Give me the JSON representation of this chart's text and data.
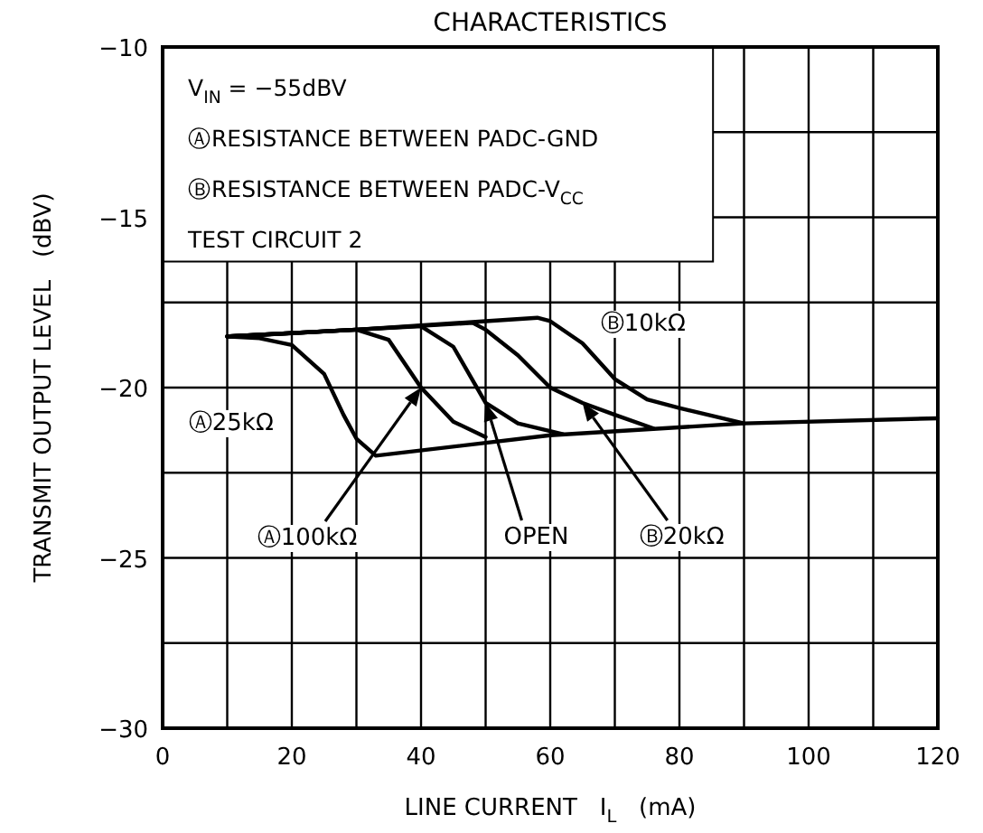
{
  "chart_data": {
    "type": "line",
    "title": "CHARACTERISTICS",
    "xlabel": "LINE CURRENT   I$_{L}$   (mA)",
    "ylabel": "TRANSMIT OUTPUT LEVEL   (dBV)",
    "annotations": [
      "V$_{IN}$ = −55dBV",
      "ⒶRESISTANCE BETWEEN PADC-GND",
      "ⒷRESISTANCE BETWEEN PADC-V$_{CC}$",
      "TEST CIRCUIT 2"
    ],
    "xlim": [
      0,
      120
    ],
    "ylim": [
      -30,
      -10
    ],
    "xticks": [
      0,
      {
        "value": 10,
        "label": null
      },
      20,
      {
        "value": 30,
        "label": null
      },
      40,
      {
        "value": 50,
        "label": null
      },
      60,
      {
        "value": 70,
        "label": null
      },
      80,
      {
        "value": 90,
        "label": null
      },
      100,
      {
        "value": 110,
        "label": null
      },
      120
    ],
    "yticks": [
      {
        "value": -30,
        "label": "−30"
      },
      {
        "value": -27.5,
        "label": null
      },
      {
        "value": -25,
        "label": "−25"
      },
      {
        "value": -22.5,
        "label": null
      },
      {
        "value": -20,
        "label": "−20"
      },
      {
        "value": -17.5,
        "label": null
      },
      {
        "value": -15,
        "label": "−15"
      },
      {
        "value": -12.5,
        "label": null
      },
      {
        "value": -10,
        "label": "−10"
      }
    ],
    "grid": true,
    "marker": "none",
    "line_style": "solid",
    "series": [
      {
        "name": "Ⓐ25kΩ",
        "color": "#000000",
        "x": [
          10,
          15,
          20,
          25,
          28,
          30,
          33,
          60,
          90,
          120
        ],
        "values": [
          -18.5,
          -18.55,
          -18.75,
          -19.6,
          -20.8,
          -21.5,
          -22.0,
          -21.4,
          -21.05,
          -20.9
        ]
      },
      {
        "name": "Ⓐ100kΩ",
        "color": "#000000",
        "x": [
          10,
          20,
          30,
          35,
          40,
          45,
          50
        ],
        "values": [
          -18.5,
          -18.4,
          -18.3,
          -18.6,
          -20.0,
          -21.0,
          -21.45
        ]
      },
      {
        "name": "OPEN",
        "color": "#000000",
        "x": [
          10,
          20,
          30,
          40,
          45,
          50,
          55,
          62
        ],
        "values": [
          -18.5,
          -18.4,
          -18.3,
          -18.2,
          -18.8,
          -20.45,
          -21.05,
          -21.37
        ]
      },
      {
        "name": "Ⓑ20kΩ",
        "color": "#000000",
        "x": [
          10,
          30,
          48,
          50,
          55,
          60,
          65,
          70,
          76
        ],
        "values": [
          -18.5,
          -18.3,
          -18.1,
          -18.3,
          -19.05,
          -20.0,
          -20.45,
          -20.8,
          -21.2
        ]
      },
      {
        "name": "Ⓑ10kΩ",
        "color": "#000000",
        "x": [
          10,
          30,
          50,
          58,
          60,
          65,
          70,
          75,
          80,
          90
        ],
        "values": [
          -18.5,
          -18.3,
          -18.05,
          -17.95,
          -18.05,
          -18.7,
          -19.75,
          -20.35,
          -20.6,
          -21.05
        ]
      }
    ]
  }
}
